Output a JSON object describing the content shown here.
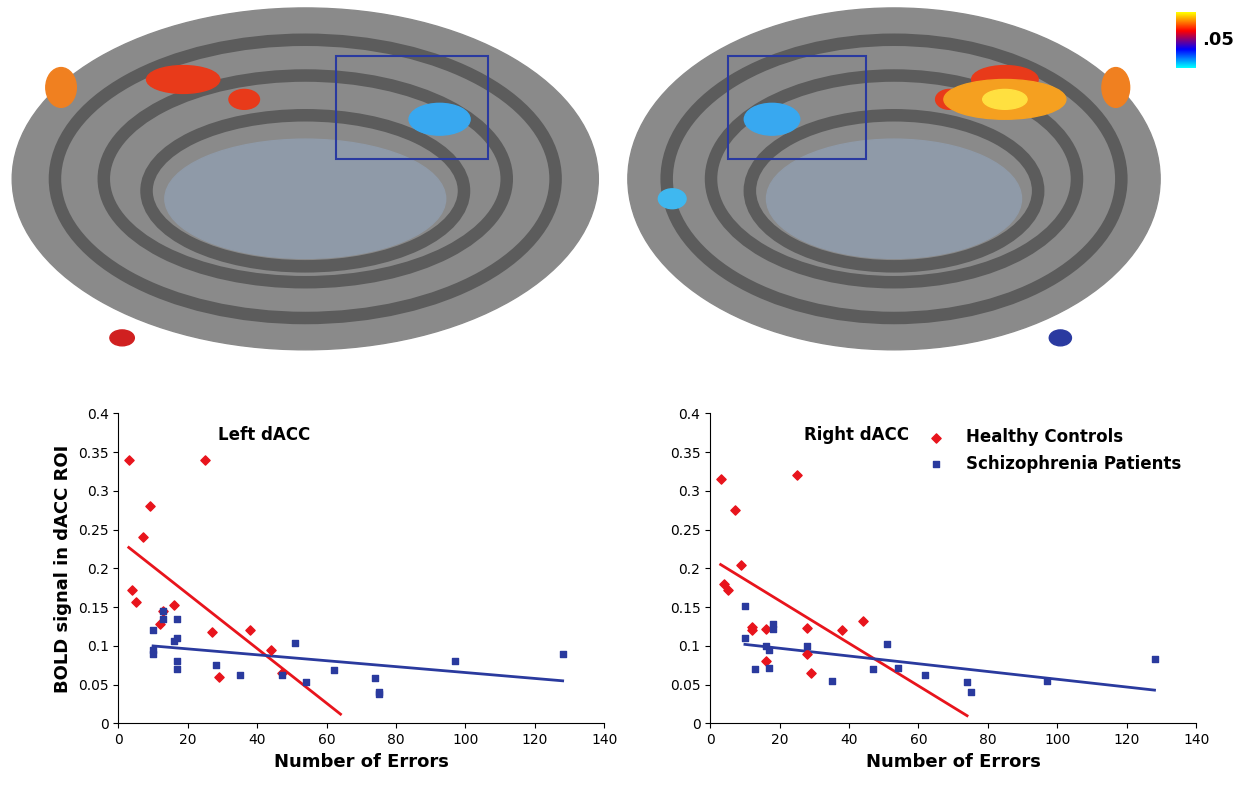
{
  "chart_data": [
    {
      "type": "scatter",
      "title": "Left dACC",
      "x_label": "Number of Errors",
      "y_label": "BOLD signal in dACC ROI",
      "xlim": [
        0,
        140
      ],
      "xticks": [
        0,
        20,
        40,
        60,
        80,
        100,
        120,
        140
      ],
      "ylim": [
        0,
        0.4
      ],
      "yticks": [
        0,
        0.05,
        0.1,
        0.15,
        0.2,
        0.25,
        0.3,
        0.35,
        0.4
      ],
      "series": [
        {
          "name": "Healthy Controls",
          "color": "#e8141c",
          "marker": "diamond",
          "x": [
            3,
            4,
            5,
            7,
            9,
            12,
            13,
            16,
            25,
            27,
            29,
            38,
            44,
            47
          ],
          "values": [
            0.34,
            0.172,
            0.157,
            0.24,
            0.28,
            0.128,
            0.145,
            0.153,
            0.34,
            0.118,
            0.06,
            0.12,
            0.095,
            0.065
          ],
          "trend": {
            "x": [
              3,
              64
            ],
            "values": [
              0.227,
              0.012
            ]
          }
        },
        {
          "name": "Schizophrenia Patients",
          "color": "#2a3a9e",
          "marker": "square",
          "x": [
            10,
            10,
            10,
            13,
            13,
            16,
            17,
            17,
            17,
            17,
            28,
            35,
            47,
            51,
            54,
            62,
            74,
            75,
            75,
            97,
            128
          ],
          "values": [
            0.12,
            0.095,
            0.09,
            0.145,
            0.135,
            0.107,
            0.08,
            0.07,
            0.11,
            0.135,
            0.075,
            0.062,
            0.063,
            0.104,
            0.053,
            0.069,
            0.058,
            0.04,
            0.038,
            0.08,
            0.09
          ],
          "trend": {
            "x": [
              10,
              128
            ],
            "values": [
              0.1,
              0.055
            ]
          }
        }
      ]
    },
    {
      "type": "scatter",
      "title": "Right dACC",
      "x_label": "Number of Errors",
      "legend": "upper right",
      "xlim": [
        0,
        140
      ],
      "xticks": [
        0,
        20,
        40,
        60,
        80,
        100,
        120,
        140
      ],
      "ylim": [
        0,
        0.4
      ],
      "yticks": [
        0,
        0.05,
        0.1,
        0.15,
        0.2,
        0.25,
        0.3,
        0.35,
        0.4
      ],
      "series": [
        {
          "name": "Healthy Controls",
          "color": "#e8141c",
          "marker": "diamond",
          "x": [
            3,
            4,
            5,
            7,
            9,
            12,
            12,
            16,
            16,
            25,
            28,
            28,
            29,
            38,
            44
          ],
          "values": [
            0.316,
            0.18,
            0.172,
            0.275,
            0.205,
            0.12,
            0.125,
            0.08,
            0.122,
            0.32,
            0.123,
            0.09,
            0.065,
            0.12,
            0.132
          ],
          "trend": {
            "x": [
              3,
              74
            ],
            "values": [
              0.205,
              0.01
            ]
          }
        },
        {
          "name": "Schizophrenia Patients",
          "color": "#2a3a9e",
          "marker": "square",
          "x": [
            10,
            10,
            13,
            16,
            17,
            17,
            18,
            18,
            28,
            35,
            47,
            51,
            54,
            62,
            74,
            75,
            97,
            128
          ],
          "values": [
            0.152,
            0.11,
            0.07,
            0.1,
            0.095,
            0.072,
            0.122,
            0.128,
            0.1,
            0.055,
            0.07,
            0.103,
            0.072,
            0.062,
            0.054,
            0.04,
            0.055,
            0.083
          ],
          "trend": {
            "x": [
              10,
              128
            ],
            "values": [
              0.102,
              0.043
            ]
          }
        }
      ]
    }
  ],
  "colorbar_label": ".05"
}
